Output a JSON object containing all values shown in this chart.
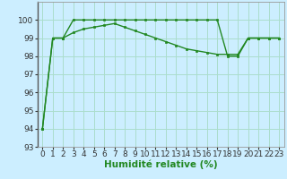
{
  "title": "",
  "xlabel": "Humidité relative (%)",
  "ylabel": "",
  "background_color": "#cceeff",
  "grid_color": "#aaddcc",
  "line_color": "#228822",
  "x": [
    0,
    1,
    2,
    3,
    4,
    5,
    6,
    7,
    8,
    9,
    10,
    11,
    12,
    13,
    14,
    15,
    16,
    17,
    18,
    19,
    20,
    21,
    22,
    23
  ],
  "line1": [
    94,
    99,
    99,
    100,
    100,
    100,
    100,
    100,
    100,
    100,
    100,
    100,
    100,
    100,
    100,
    100,
    100,
    100,
    98,
    98,
    99,
    99,
    99,
    99
  ],
  "line2": [
    94,
    99,
    99,
    99.3,
    99.5,
    99.6,
    99.7,
    99.8,
    99.6,
    99.4,
    99.2,
    99.0,
    98.8,
    98.6,
    98.4,
    98.3,
    98.2,
    98.1,
    98.1,
    98.1,
    99.0,
    99.0,
    99.0,
    99.0
  ],
  "ylim": [
    93,
    101
  ],
  "xlim": [
    -0.5,
    23.5
  ],
  "yticks": [
    93,
    94,
    95,
    96,
    97,
    98,
    99,
    100
  ],
  "xticks": [
    0,
    1,
    2,
    3,
    4,
    5,
    6,
    7,
    8,
    9,
    10,
    11,
    12,
    13,
    14,
    15,
    16,
    17,
    18,
    19,
    20,
    21,
    22,
    23
  ],
  "tick_fontsize": 6.5,
  "xlabel_fontsize": 7.5,
  "marker": "s",
  "marker_size": 2.0,
  "linewidth": 1.0
}
